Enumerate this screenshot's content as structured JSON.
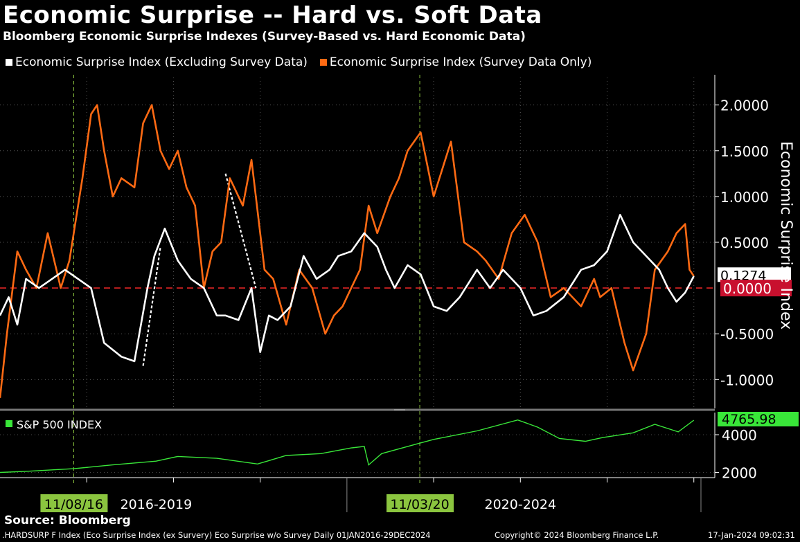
{
  "header": {
    "title": "Economic Surprise -- Hard vs. Soft Data",
    "subtitle": "Bloomberg Economic Surprise Indexes (Survey-Based vs. Hard Economic Data)"
  },
  "footer": {
    "source": "Source: Bloomberg",
    "ticker_line": ".HARDSURP F Index (Eco Surprise Index (ex Survery) Eco Surprise w/o Survey  Daily 01JAN2016-29DEC2024",
    "copyright": "Copyright© 2024 Bloomberg Finance L.P.",
    "timestamp": "17-Jan-2024 09:02:31"
  },
  "colors": {
    "hard": "#ffffff",
    "soft": "#ff6a13",
    "zero_line": "#e02424",
    "sp500": "#39e639",
    "zero_label_bg": "#c8102e",
    "event_label_bg": "#8bc53f"
  },
  "chart_data": [
    {
      "type": "line",
      "title": "Economic Surprise -- Hard vs. Soft Data",
      "ylabel": "Economic Surprise Index",
      "ylim": [
        -1.3,
        2.3
      ],
      "yticks": [
        "2.0000",
        "1.5000",
        "1.0000",
        "0.5000",
        "-0.5000",
        "-1.0000"
      ],
      "ytick_values": [
        2.0,
        1.5,
        1.0,
        0.5,
        -0.5,
        -1.0
      ],
      "xlim": [
        2016.0,
        2024.05
      ],
      "reference_line": {
        "value": 0.0,
        "label": "0.0000"
      },
      "last_value_label": "0.1274",
      "series": [
        {
          "name": "Economic Surprise Index (Excluding Survey Data)",
          "key": "hard",
          "x": [
            2016.0,
            2016.1,
            2016.2,
            2016.3,
            2016.45,
            2016.6,
            2016.75,
            2016.9,
            2017.05,
            2017.2,
            2017.4,
            2017.55,
            2017.7,
            2017.78,
            2017.9,
            2018.05,
            2018.2,
            2018.35,
            2018.5,
            2018.6,
            2018.75,
            2018.9,
            2019.0,
            2019.1,
            2019.2,
            2019.25,
            2019.35,
            2019.5,
            2019.65,
            2019.8,
            2019.9,
            2020.05,
            2020.2,
            2020.35,
            2020.45,
            2020.55,
            2020.7,
            2020.85,
            2021.0,
            2021.15,
            2021.3,
            2021.5,
            2021.65,
            2021.8,
            2022.0,
            2022.15,
            2022.3,
            2022.5,
            2022.7,
            2022.85,
            2023.0,
            2023.15,
            2023.3,
            2023.5,
            2023.6,
            2023.7,
            2023.8,
            2023.9,
            2024.0
          ],
          "values": [
            -0.3,
            -0.1,
            -0.4,
            0.1,
            0.0,
            0.1,
            0.2,
            0.1,
            0.0,
            -0.6,
            -0.75,
            -0.8,
            0.0,
            0.35,
            0.65,
            0.3,
            0.1,
            0.0,
            -0.3,
            -0.3,
            -0.35,
            0.0,
            -0.7,
            -0.3,
            -0.35,
            -0.3,
            -0.2,
            0.35,
            0.1,
            0.2,
            0.35,
            0.4,
            0.6,
            0.45,
            0.2,
            0.0,
            0.25,
            0.15,
            -0.2,
            -0.25,
            -0.1,
            0.2,
            0.0,
            0.2,
            0.0,
            -0.3,
            -0.25,
            -0.1,
            0.2,
            0.25,
            0.4,
            0.8,
            0.5,
            0.3,
            0.2,
            0.0,
            -0.15,
            -0.05,
            0.13
          ]
        },
        {
          "name": "Economic Surprise Index (Survey Data Only)",
          "key": "soft",
          "x": [
            2016.0,
            2016.08,
            2016.2,
            2016.3,
            2016.42,
            2016.55,
            2016.7,
            2016.8,
            2016.95,
            2017.05,
            2017.12,
            2017.2,
            2017.3,
            2017.4,
            2017.55,
            2017.65,
            2017.75,
            2017.85,
            2017.95,
            2018.05,
            2018.15,
            2018.25,
            2018.35,
            2018.45,
            2018.55,
            2018.65,
            2018.8,
            2018.9,
            2019.05,
            2019.15,
            2019.3,
            2019.45,
            2019.6,
            2019.75,
            2019.85,
            2019.95,
            2020.05,
            2020.15,
            2020.25,
            2020.35,
            2020.5,
            2020.6,
            2020.7,
            2020.85,
            2021.0,
            2021.1,
            2021.2,
            2021.35,
            2021.5,
            2021.6,
            2021.75,
            2021.9,
            2022.05,
            2022.2,
            2022.35,
            2022.5,
            2022.7,
            2022.85,
            2022.92,
            2023.05,
            2023.2,
            2023.3,
            2023.45,
            2023.55,
            2023.7,
            2023.8,
            2023.9,
            2023.95,
            2024.0
          ],
          "values": [
            -1.2,
            -0.5,
            0.4,
            0.2,
            0.0,
            0.6,
            0.0,
            0.3,
            1.2,
            1.9,
            2.0,
            1.5,
            1.0,
            1.2,
            1.1,
            1.8,
            2.0,
            1.5,
            1.3,
            1.5,
            1.1,
            0.9,
            0.0,
            0.4,
            0.5,
            1.2,
            0.9,
            1.4,
            0.2,
            0.1,
            -0.4,
            0.2,
            0.0,
            -0.5,
            -0.3,
            -0.2,
            0.0,
            0.2,
            0.9,
            0.6,
            1.0,
            1.2,
            1.5,
            1.7,
            1.0,
            1.3,
            1.6,
            0.5,
            0.4,
            0.3,
            0.1,
            0.6,
            0.8,
            0.5,
            -0.1,
            0.0,
            -0.2,
            0.1,
            -0.1,
            0.0,
            -0.6,
            -0.9,
            -0.5,
            0.2,
            0.4,
            0.6,
            0.7,
            0.2,
            0.13
          ]
        }
      ],
      "annotations": [
        {
          "type": "trend-arrow",
          "from": [
            2017.65,
            -0.85
          ],
          "to": [
            2017.85,
            0.45
          ]
        },
        {
          "type": "trend-arrow",
          "from": [
            2018.6,
            1.25
          ],
          "to": [
            2018.95,
            0.0
          ]
        }
      ]
    },
    {
      "type": "line",
      "title": "S&P 500 INDEX",
      "ylim": [
        1800,
        5100
      ],
      "yticks": [
        "4000",
        "2000"
      ],
      "ytick_values": [
        4000,
        2000
      ],
      "last_value_label": "4765.98",
      "series": [
        {
          "name": "S&P 500 INDEX",
          "key": "sp500",
          "x": [
            2016.0,
            2016.3,
            2016.85,
            2017.3,
            2017.8,
            2018.05,
            2018.5,
            2018.97,
            2019.3,
            2019.7,
            2020.05,
            2020.2,
            2020.25,
            2020.4,
            2020.8,
            2021.0,
            2021.5,
            2021.97,
            2022.2,
            2022.45,
            2022.75,
            2022.95,
            2023.3,
            2023.55,
            2023.82,
            2024.0
          ],
          "values": [
            2000,
            2060,
            2200,
            2400,
            2600,
            2850,
            2750,
            2450,
            2900,
            3000,
            3300,
            3380,
            2400,
            3000,
            3500,
            3750,
            4200,
            4780,
            4400,
            3800,
            3650,
            3850,
            4100,
            4550,
            4150,
            4766
          ]
        }
      ]
    }
  ],
  "xaxis": {
    "event_labels": [
      {
        "x": 2016.85,
        "label": "11/08/16"
      },
      {
        "x": 2020.84,
        "label": "11/03/20"
      }
    ],
    "period_labels": [
      {
        "x": 2017.8,
        "label": "2016-2019"
      },
      {
        "x": 2022.0,
        "label": "2020-2024"
      }
    ],
    "tick_x": [
      2017.0,
      2018.0,
      2019.0,
      2021.0,
      2022.0,
      2023.0,
      2024.0
    ],
    "divider_x": 2020.0
  }
}
